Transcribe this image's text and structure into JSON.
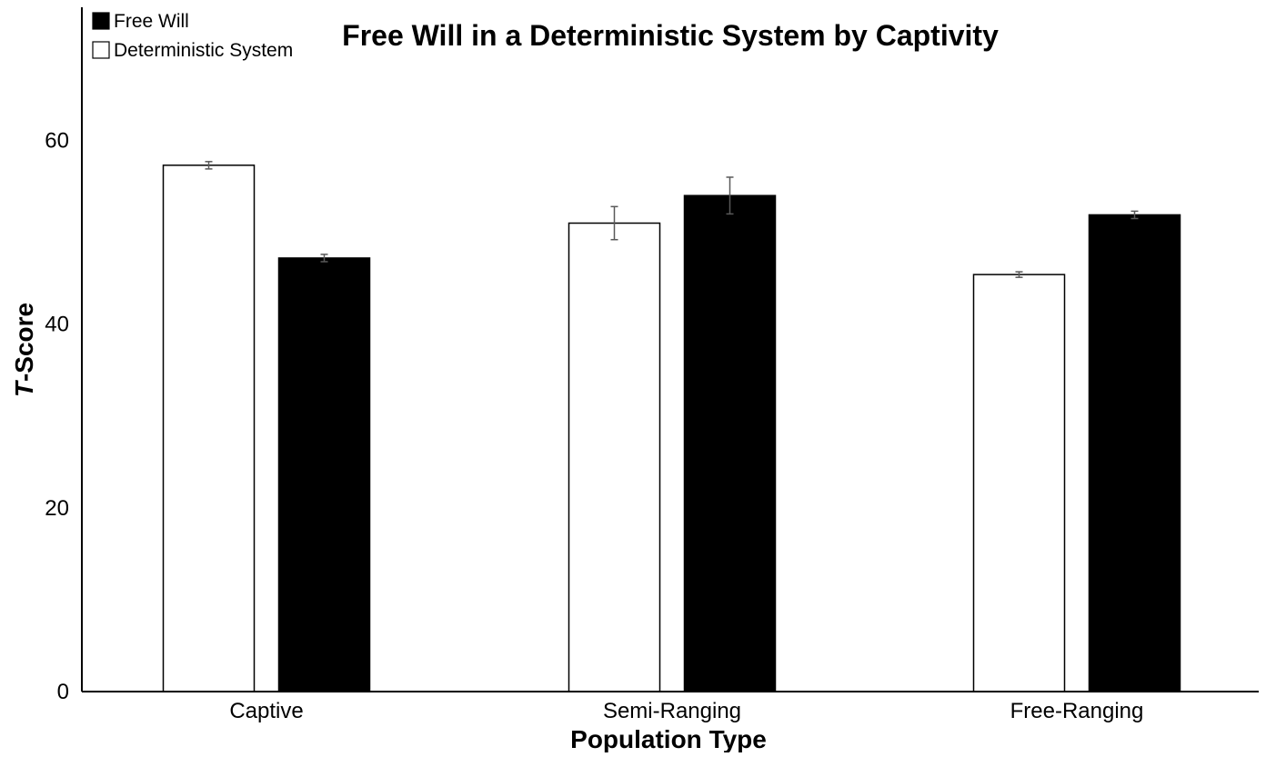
{
  "chart_data": {
    "type": "bar",
    "title": "Free Will in a Deterministic System by Captivity",
    "xlabel": "Population Type",
    "ylabel_italic": "T",
    "ylabel_rest": "-Score",
    "categories": [
      "Captive",
      "Semi-Ranging",
      "Free-Ranging"
    ],
    "series": [
      {
        "name": "Deterministic System",
        "fill": "#ffffff",
        "stroke": "#000000",
        "values": [
          57.3,
          51.0,
          45.4
        ],
        "errors": [
          0.4,
          1.8,
          0.3
        ]
      },
      {
        "name": "Free Will",
        "fill": "#000000",
        "stroke": "#000000",
        "values": [
          47.2,
          54.0,
          51.9
        ],
        "errors": [
          0.4,
          2.0,
          0.4
        ]
      }
    ],
    "legend_order": [
      "Free Will",
      "Deterministic System"
    ],
    "legend_position": "top-left",
    "yticks": [
      0,
      20,
      40,
      60
    ],
    "ylim": [
      0,
      74.5
    ],
    "grid": false,
    "error_bar_color": "#595959"
  }
}
